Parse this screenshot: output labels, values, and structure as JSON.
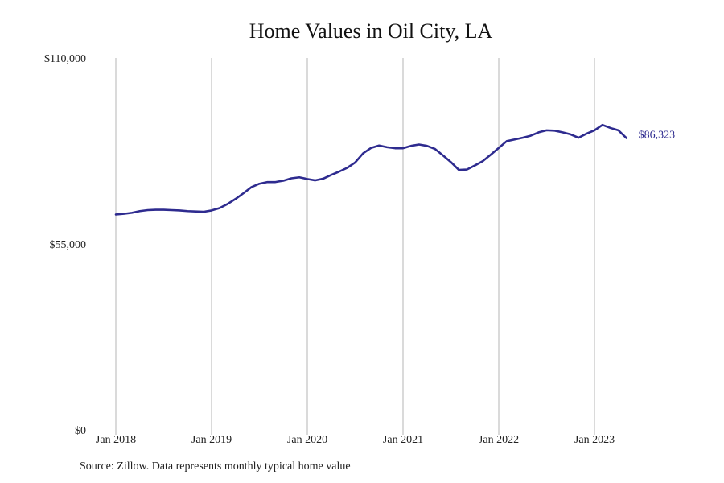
{
  "chart_data": {
    "type": "line",
    "title": "Home Values in Oil City, LA",
    "xlabel": "",
    "ylabel": "",
    "ylim": [
      0,
      110000
    ],
    "y_ticks": [
      {
        "value": 0,
        "label": "$0"
      },
      {
        "value": 55000,
        "label": "$55,000"
      },
      {
        "value": 110000,
        "label": "$110,000"
      }
    ],
    "x_ticks": [
      {
        "value": "2018-01",
        "label": "Jan 2018"
      },
      {
        "value": "2019-01",
        "label": "Jan 2019"
      },
      {
        "value": "2020-01",
        "label": "Jan 2020"
      },
      {
        "value": "2021-01",
        "label": "Jan 2021"
      },
      {
        "value": "2022-01",
        "label": "Jan 2022"
      },
      {
        "value": "2023-01",
        "label": "Jan 2023"
      }
    ],
    "grid": {
      "vertical": true,
      "horizontal": false
    },
    "legend": "none",
    "end_label": "$86,323",
    "series": [
      {
        "color": "#2e2b8f",
        "x": [
          "2018-01",
          "2018-02",
          "2018-03",
          "2018-04",
          "2018-05",
          "2018-06",
          "2018-07",
          "2018-08",
          "2018-09",
          "2018-10",
          "2018-11",
          "2018-12",
          "2019-01",
          "2019-02",
          "2019-03",
          "2019-04",
          "2019-05",
          "2019-06",
          "2019-07",
          "2019-08",
          "2019-09",
          "2019-10",
          "2019-11",
          "2019-12",
          "2020-01",
          "2020-02",
          "2020-03",
          "2020-04",
          "2020-05",
          "2020-06",
          "2020-07",
          "2020-08",
          "2020-09",
          "2020-10",
          "2020-11",
          "2020-12",
          "2021-01",
          "2021-02",
          "2021-03",
          "2021-04",
          "2021-05",
          "2021-06",
          "2021-07",
          "2021-08",
          "2021-09",
          "2021-10",
          "2021-11",
          "2021-12",
          "2022-01",
          "2022-02",
          "2022-03",
          "2022-04",
          "2022-05",
          "2022-06",
          "2022-07",
          "2022-08",
          "2022-09",
          "2022-10",
          "2022-11",
          "2022-12",
          "2023-01",
          "2023-02",
          "2023-03",
          "2023-04",
          "2023-05"
        ],
        "values": [
          63700,
          63900,
          64200,
          64700,
          65000,
          65100,
          65100,
          65000,
          64900,
          64700,
          64600,
          64500,
          64900,
          65600,
          66800,
          68300,
          70000,
          71800,
          72800,
          73300,
          73300,
          73700,
          74400,
          74700,
          74200,
          73800,
          74300,
          75400,
          76400,
          77500,
          79100,
          81800,
          83400,
          84100,
          83600,
          83300,
          83300,
          84000,
          84400,
          84000,
          83100,
          81200,
          79200,
          76900,
          77000,
          78200,
          79500,
          81400,
          83400,
          85400,
          85900,
          86400,
          87000,
          88000,
          88600,
          88500,
          88000,
          87400,
          86400,
          87600,
          88600,
          90200,
          89300,
          88600,
          86323
        ]
      }
    ]
  },
  "source_note": "Source: Zillow. Data represents monthly typical home value"
}
